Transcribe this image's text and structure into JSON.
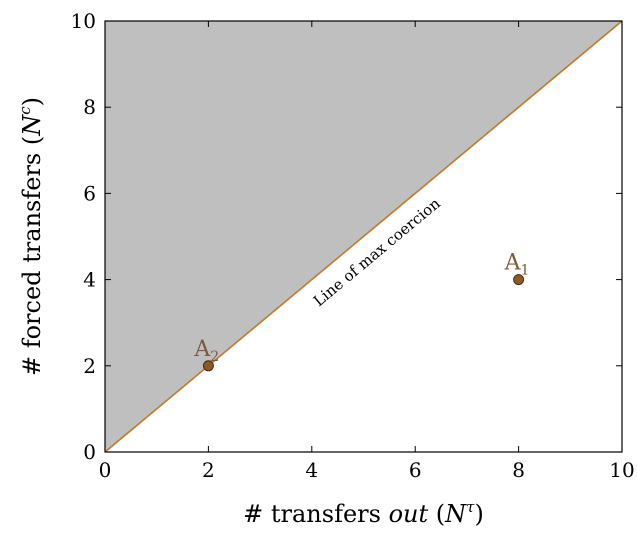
{
  "chart_data": {
    "type": "scatter",
    "title": "",
    "xlabel": {
      "prefix": "# transfers ",
      "italic": "out",
      "symbol": "N",
      "sup": "τ"
    },
    "ylabel": {
      "prefix": "# forced transfers ",
      "symbol": "N",
      "sup": "c"
    },
    "xlim": [
      0,
      10
    ],
    "ylim": [
      0,
      10
    ],
    "xticks": [
      0,
      2,
      4,
      6,
      8,
      10
    ],
    "yticks": [
      0,
      2,
      4,
      6,
      8,
      10
    ],
    "grid": false,
    "region": {
      "description": "shaded area above y = x",
      "vertices": [
        [
          0,
          0
        ],
        [
          0,
          10
        ],
        [
          10,
          10
        ]
      ],
      "fill": "#bfbfbf"
    },
    "line": {
      "label": "Line of max coercion",
      "from": [
        0,
        0
      ],
      "to": [
        10,
        10
      ],
      "color": "#c07a28"
    },
    "points": [
      {
        "label": "A",
        "sub": "1",
        "x": 8,
        "y": 4
      },
      {
        "label": "A",
        "sub": "2",
        "x": 2,
        "y": 2
      }
    ],
    "point_color": "#8b5a2b",
    "label_color": "#7a5a3a"
  }
}
